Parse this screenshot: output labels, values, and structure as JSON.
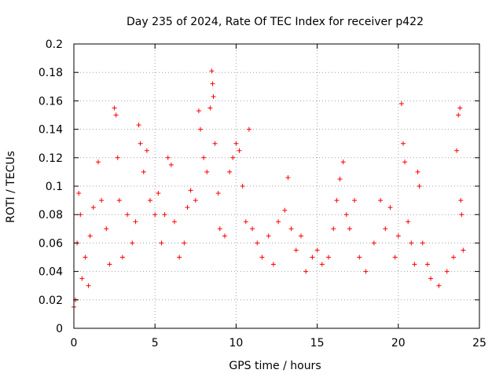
{
  "chart_data": {
    "type": "scatter",
    "title": "Day 235 of 2024, Rate Of TEC Index for receiver p422",
    "xlabel": "GPS time / hours",
    "ylabel": "ROTI / TECUs",
    "xlim": [
      0,
      25
    ],
    "ylim": [
      0,
      0.2
    ],
    "xticks": [
      0,
      5,
      10,
      15,
      20,
      25
    ],
    "xtick_labels": [
      "0",
      "5",
      "10",
      "15",
      "20",
      "25"
    ],
    "yticks": [
      0,
      0.02,
      0.04,
      0.06,
      0.08,
      0.1,
      0.12,
      0.14,
      0.16,
      0.18,
      0.2
    ],
    "ytick_labels": [
      "0",
      "0.02",
      "0.04",
      "0.06",
      "0.08",
      "0.1",
      "0.12",
      "0.14",
      "0.16",
      "0.18",
      "0.2"
    ],
    "grid": true,
    "marker": "plus",
    "color": "#ff0000",
    "series": [
      {
        "points": [
          [
            0.0,
            0.015
          ],
          [
            0.1,
            0.02
          ],
          [
            0.2,
            0.06
          ],
          [
            0.3,
            0.095
          ],
          [
            0.4,
            0.08
          ],
          [
            0.5,
            0.035
          ],
          [
            0.7,
            0.05
          ],
          [
            0.9,
            0.03
          ],
          [
            1.0,
            0.065
          ],
          [
            1.2,
            0.085
          ],
          [
            1.5,
            0.117
          ],
          [
            1.7,
            0.09
          ],
          [
            2.0,
            0.07
          ],
          [
            2.2,
            0.045
          ],
          [
            2.5,
            0.155
          ],
          [
            2.6,
            0.15
          ],
          [
            2.7,
            0.12
          ],
          [
            2.8,
            0.09
          ],
          [
            3.0,
            0.05
          ],
          [
            3.3,
            0.08
          ],
          [
            3.6,
            0.06
          ],
          [
            3.8,
            0.075
          ],
          [
            4.0,
            0.143
          ],
          [
            4.1,
            0.13
          ],
          [
            4.3,
            0.11
          ],
          [
            4.5,
            0.125
          ],
          [
            4.7,
            0.09
          ],
          [
            5.0,
            0.08
          ],
          [
            5.2,
            0.095
          ],
          [
            5.4,
            0.06
          ],
          [
            5.6,
            0.08
          ],
          [
            5.8,
            0.12
          ],
          [
            6.0,
            0.115
          ],
          [
            6.2,
            0.075
          ],
          [
            6.5,
            0.05
          ],
          [
            6.8,
            0.06
          ],
          [
            7.0,
            0.085
          ],
          [
            7.2,
            0.097
          ],
          [
            7.5,
            0.09
          ],
          [
            7.7,
            0.153
          ],
          [
            7.8,
            0.14
          ],
          [
            8.0,
            0.12
          ],
          [
            8.2,
            0.11
          ],
          [
            8.4,
            0.155
          ],
          [
            8.5,
            0.181
          ],
          [
            8.55,
            0.172
          ],
          [
            8.6,
            0.163
          ],
          [
            8.7,
            0.13
          ],
          [
            8.9,
            0.095
          ],
          [
            9.0,
            0.07
          ],
          [
            9.3,
            0.065
          ],
          [
            9.6,
            0.11
          ],
          [
            9.8,
            0.12
          ],
          [
            10.0,
            0.13
          ],
          [
            10.2,
            0.125
          ],
          [
            10.4,
            0.1
          ],
          [
            10.6,
            0.075
          ],
          [
            10.8,
            0.14
          ],
          [
            11.0,
            0.07
          ],
          [
            11.3,
            0.06
          ],
          [
            11.6,
            0.05
          ],
          [
            12.0,
            0.065
          ],
          [
            12.3,
            0.045
          ],
          [
            12.6,
            0.075
          ],
          [
            13.0,
            0.083
          ],
          [
            13.2,
            0.106
          ],
          [
            13.4,
            0.07
          ],
          [
            13.7,
            0.055
          ],
          [
            14.0,
            0.065
          ],
          [
            14.3,
            0.04
          ],
          [
            14.7,
            0.05
          ],
          [
            15.0,
            0.055
          ],
          [
            15.3,
            0.045
          ],
          [
            15.7,
            0.05
          ],
          [
            16.0,
            0.07
          ],
          [
            16.2,
            0.09
          ],
          [
            16.4,
            0.105
          ],
          [
            16.6,
            0.117
          ],
          [
            16.8,
            0.08
          ],
          [
            17.0,
            0.07
          ],
          [
            17.3,
            0.09
          ],
          [
            17.6,
            0.05
          ],
          [
            18.0,
            0.04
          ],
          [
            18.5,
            0.06
          ],
          [
            18.9,
            0.09
          ],
          [
            19.2,
            0.07
          ],
          [
            19.5,
            0.085
          ],
          [
            19.8,
            0.05
          ],
          [
            20.0,
            0.065
          ],
          [
            20.2,
            0.158
          ],
          [
            20.3,
            0.13
          ],
          [
            20.4,
            0.117
          ],
          [
            20.6,
            0.075
          ],
          [
            20.8,
            0.06
          ],
          [
            21.0,
            0.045
          ],
          [
            21.2,
            0.11
          ],
          [
            21.3,
            0.1
          ],
          [
            21.5,
            0.06
          ],
          [
            21.8,
            0.045
          ],
          [
            22.0,
            0.035
          ],
          [
            22.5,
            0.03
          ],
          [
            23.0,
            0.04
          ],
          [
            23.4,
            0.05
          ],
          [
            23.6,
            0.125
          ],
          [
            23.7,
            0.15
          ],
          [
            23.8,
            0.155
          ],
          [
            23.85,
            0.09
          ],
          [
            23.9,
            0.08
          ],
          [
            24.0,
            0.055
          ]
        ]
      }
    ]
  }
}
